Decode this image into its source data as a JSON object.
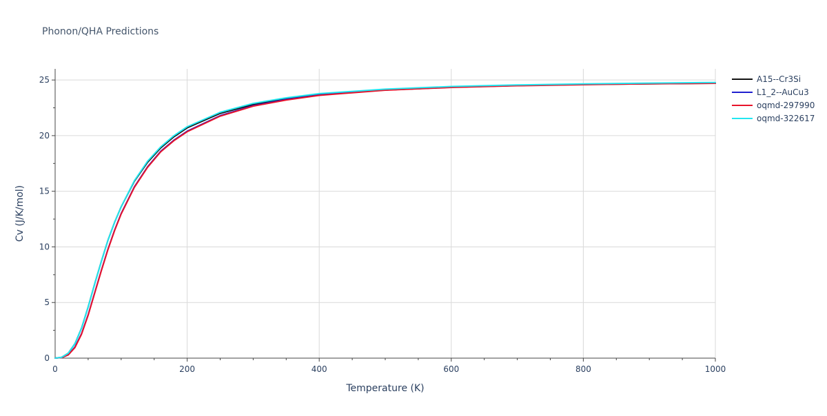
{
  "chart_data": {
    "type": "line",
    "title": "Phonon/QHA Predictions",
    "xlabel": "Temperature (K)",
    "ylabel": "Cv (J/K/mol)",
    "xlim": [
      0,
      1000
    ],
    "ylim": [
      0,
      26
    ],
    "xticks": [
      0,
      200,
      400,
      600,
      800,
      1000
    ],
    "yticks": [
      0,
      5,
      10,
      15,
      20,
      25
    ],
    "grid": true,
    "legend_position": "top-right",
    "colors": {
      "background": "#ffffff",
      "grid": "#d9d9d9",
      "axis": "#444444",
      "text": "#2a3f5f",
      "title": "#44556b"
    },
    "series": [
      {
        "name": "A15--Cr3Si",
        "color": "#111111",
        "x": [
          0,
          10,
          20,
          30,
          40,
          50,
          60,
          70,
          80,
          90,
          100,
          120,
          140,
          160,
          180,
          200,
          250,
          300,
          350,
          400,
          500,
          600,
          700,
          800,
          900,
          1000
        ],
        "y": [
          0,
          0.08,
          0.45,
          1.3,
          2.7,
          4.6,
          6.7,
          8.7,
          10.6,
          12.2,
          13.6,
          15.9,
          17.6,
          18.9,
          19.9,
          20.7,
          22.0,
          22.8,
          23.3,
          23.7,
          24.1,
          24.35,
          24.5,
          24.6,
          24.65,
          24.7
        ]
      },
      {
        "name": "L1_2--AuCu3",
        "color": "#1f1fcf",
        "x": [
          0,
          10,
          20,
          30,
          40,
          50,
          60,
          70,
          80,
          90,
          100,
          120,
          140,
          160,
          180,
          200,
          250,
          300,
          350,
          400,
          500,
          600,
          700,
          800,
          900,
          1000
        ],
        "y": [
          0,
          0.05,
          0.3,
          1.0,
          2.2,
          3.9,
          5.9,
          7.9,
          9.8,
          11.5,
          13.0,
          15.4,
          17.2,
          18.6,
          19.6,
          20.4,
          21.8,
          22.7,
          23.25,
          23.65,
          24.1,
          24.35,
          24.5,
          24.6,
          24.68,
          24.72
        ]
      },
      {
        "name": "oqmd-297990",
        "color": "#e8132a",
        "x": [
          0,
          10,
          20,
          30,
          40,
          50,
          60,
          70,
          80,
          90,
          100,
          120,
          140,
          160,
          180,
          200,
          250,
          300,
          350,
          400,
          500,
          600,
          700,
          800,
          900,
          1000
        ],
        "y": [
          0,
          0.05,
          0.3,
          0.95,
          2.15,
          3.85,
          5.85,
          7.85,
          9.75,
          11.45,
          12.95,
          15.35,
          17.15,
          18.55,
          19.55,
          20.35,
          21.75,
          22.65,
          23.2,
          23.62,
          24.08,
          24.33,
          24.48,
          24.58,
          24.66,
          24.7
        ]
      },
      {
        "name": "oqmd-322617",
        "color": "#22e6f0",
        "x": [
          0,
          10,
          20,
          30,
          40,
          50,
          60,
          70,
          80,
          90,
          100,
          120,
          140,
          160,
          180,
          200,
          250,
          300,
          350,
          400,
          500,
          600,
          700,
          800,
          900,
          1000
        ],
        "y": [
          0,
          0.08,
          0.45,
          1.3,
          2.7,
          4.6,
          6.7,
          8.7,
          10.6,
          12.2,
          13.6,
          15.95,
          17.7,
          19.0,
          20.0,
          20.8,
          22.1,
          22.9,
          23.4,
          23.78,
          24.18,
          24.42,
          24.56,
          24.65,
          24.72,
          24.78
        ]
      }
    ]
  }
}
